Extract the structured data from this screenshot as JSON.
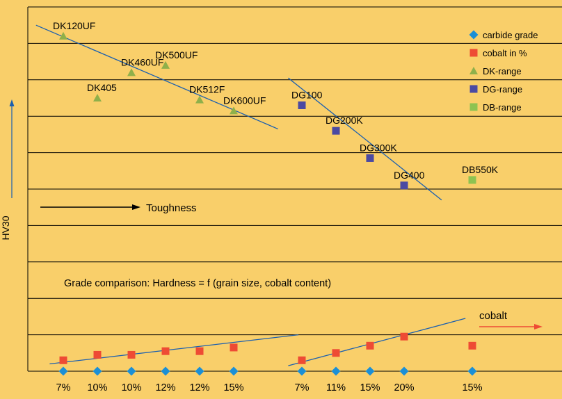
{
  "colors": {
    "background": "#f9cf6a",
    "carbide": "#1b8fd6",
    "cobalt": "#ee4b34",
    "dk": "#8fb04a",
    "dg": "#4b4aa2",
    "db": "#8ec351",
    "trend": "#1a5fb0",
    "grid": "#000000"
  },
  "ylabel": "HV30",
  "arrow_label": "Toughness",
  "caption": "Grade comparison: Hardness = f (grain size, cobalt content)",
  "cobalt_label": "cobalt",
  "chart_data": {
    "type": "scatter",
    "x": [
      1,
      2,
      3,
      4,
      5,
      6,
      8,
      9,
      10,
      11,
      13
    ],
    "x_tick_labels": [
      "7%",
      "10%",
      "10%",
      "12%",
      "12%",
      "15%",
      "7%",
      "11%",
      "15%",
      "20%",
      "15%"
    ],
    "hline_count": 10,
    "ylabel": "HV30",
    "legend_position": "top-right",
    "legend": [
      {
        "label": "carbide grade",
        "marker": "diamond",
        "color": "#1b8fd6"
      },
      {
        "label": "cobalt in %",
        "marker": "square",
        "color": "#ee4b34"
      },
      {
        "label": "DK-range",
        "marker": "triangle",
        "color": "#8fb04a"
      },
      {
        "label": "DG-range",
        "marker": "square",
        "color": "#4b4aa2"
      },
      {
        "label": "DB-range",
        "marker": "square",
        "color": "#8ec351"
      }
    ],
    "series": [
      {
        "name": "DK-range",
        "marker": "triangle",
        "color": "#8fb04a",
        "points": [
          {
            "label": "DK120UF",
            "x": 1,
            "y": 9.2
          },
          {
            "label": "DK405",
            "x": 2,
            "y": 7.5
          },
          {
            "label": "DK460UF",
            "x": 3,
            "y": 8.2
          },
          {
            "label": "DK500UF",
            "x": 4,
            "y": 8.4
          },
          {
            "label": "DK512F",
            "x": 5,
            "y": 7.45
          },
          {
            "label": "DK600UF",
            "x": 6,
            "y": 7.15
          }
        ]
      },
      {
        "name": "DG-range",
        "marker": "square",
        "color": "#4b4aa2",
        "points": [
          {
            "label": "DG100",
            "x": 8,
            "y": 7.3
          },
          {
            "label": "DG200K",
            "x": 9,
            "y": 6.6
          },
          {
            "label": "DG300K",
            "x": 10,
            "y": 5.85
          },
          {
            "label": "DG400",
            "x": 11,
            "y": 5.1
          }
        ]
      },
      {
        "name": "DB-range",
        "marker": "square",
        "color": "#8ec351",
        "points": [
          {
            "label": "DB550K",
            "x": 13,
            "y": 5.25
          }
        ]
      },
      {
        "name": "cobalt in %",
        "marker": "square",
        "color": "#ee4b34",
        "points": [
          {
            "x": 1,
            "y": 0.3
          },
          {
            "x": 2,
            "y": 0.45
          },
          {
            "x": 3,
            "y": 0.45
          },
          {
            "x": 4,
            "y": 0.55
          },
          {
            "x": 5,
            "y": 0.55
          },
          {
            "x": 6,
            "y": 0.65
          },
          {
            "x": 8,
            "y": 0.3
          },
          {
            "x": 9,
            "y": 0.5
          },
          {
            "x": 10,
            "y": 0.7
          },
          {
            "x": 11,
            "y": 0.95
          },
          {
            "x": 13,
            "y": 0.7
          }
        ]
      },
      {
        "name": "carbide grade",
        "marker": "diamond",
        "color": "#1b8fd6",
        "points": [
          {
            "x": 1,
            "y": 0
          },
          {
            "x": 2,
            "y": 0
          },
          {
            "x": 3,
            "y": 0
          },
          {
            "x": 4,
            "y": 0
          },
          {
            "x": 5,
            "y": 0
          },
          {
            "x": 6,
            "y": 0
          },
          {
            "x": 8,
            "y": 0
          },
          {
            "x": 9,
            "y": 0
          },
          {
            "x": 10,
            "y": 0
          },
          {
            "x": 11,
            "y": 0
          },
          {
            "x": 13,
            "y": 0
          }
        ]
      }
    ],
    "trendlines": [
      {
        "x": [
          0.2,
          7.3
        ],
        "y": [
          9.5,
          6.65
        ]
      },
      {
        "x": [
          7.6,
          12.1
        ],
        "y": [
          8.05,
          4.7
        ]
      },
      {
        "x": [
          0.6,
          7.9
        ],
        "y": [
          0.2,
          1.0
        ]
      },
      {
        "x": [
          7.6,
          12.8
        ],
        "y": [
          0.15,
          1.45
        ]
      }
    ]
  }
}
